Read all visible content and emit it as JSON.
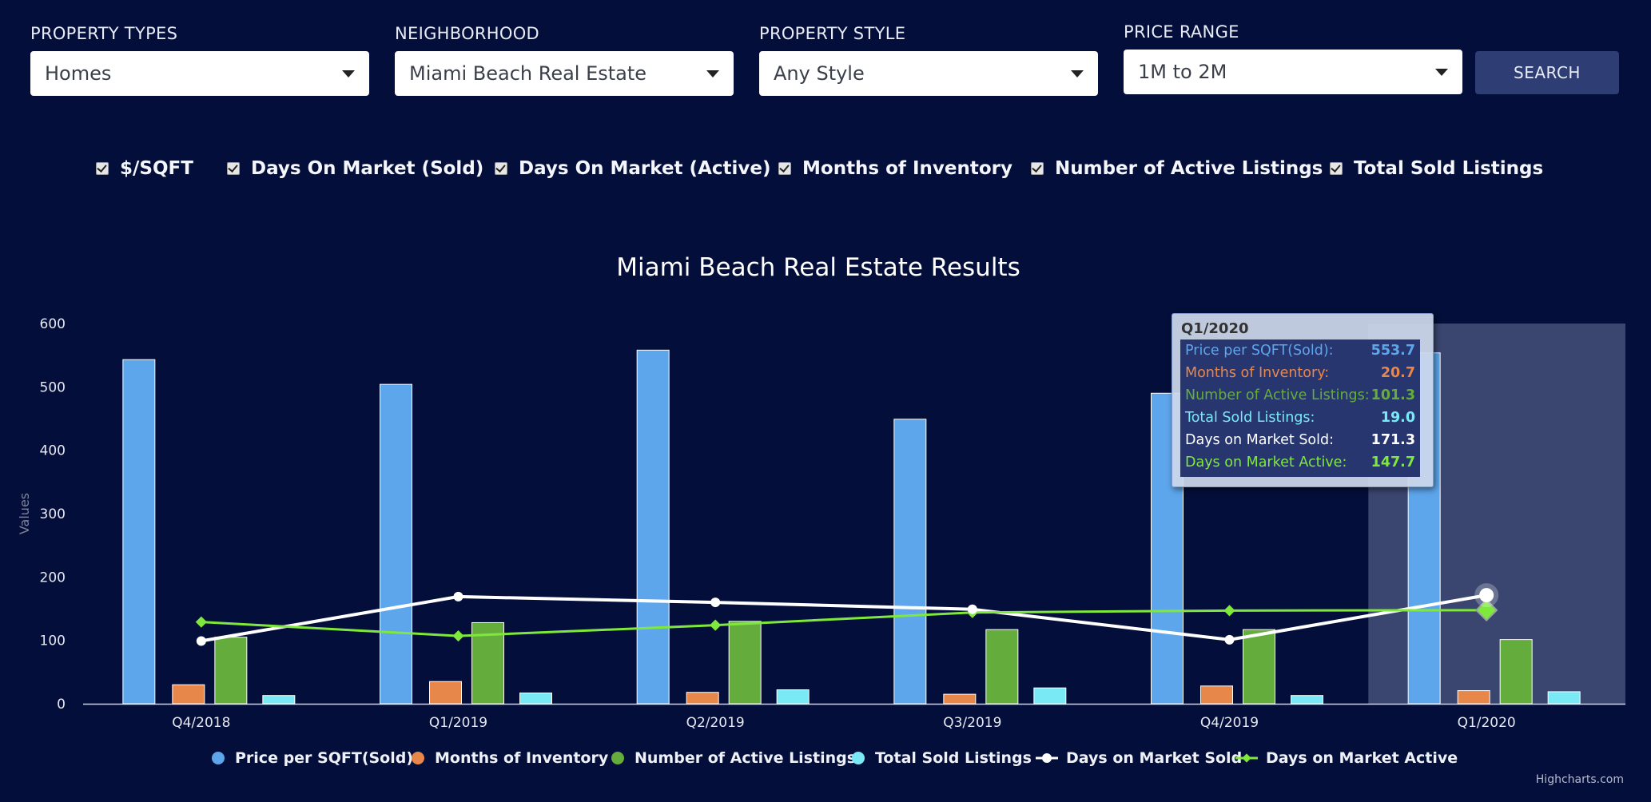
{
  "filters": [
    {
      "label": "PROPERTY TYPES",
      "value": "Homes"
    },
    {
      "label": "NEIGHBORHOOD",
      "value": "Miami Beach Real Estate"
    },
    {
      "label": "PROPERTY STYLE",
      "value": "Any Style"
    },
    {
      "label": "PRICE RANGE",
      "value": "1M to 2M"
    }
  ],
  "search_label": "SEARCH",
  "checkboxes": [
    "$/SQFT",
    "Days On Market (Sold)",
    "Days On Market (Active)",
    "Months of Inventory",
    "Number of Active Listings",
    "Total Sold Listings"
  ],
  "colors": {
    "background": "#040e3a",
    "price": "#5ea6ec",
    "months": "#e8874a",
    "active": "#64ad3c",
    "sold": "#7ae9f6",
    "dom_sold": "#ffffff",
    "dom_active": "#7fe83d",
    "highlight": "#3b4670"
  },
  "chart_data": {
    "type": "bar",
    "title": "Miami Beach Real Estate Results",
    "ylabel": "Values",
    "xlabel": "",
    "ylim": [
      0,
      600
    ],
    "yticks": [
      0,
      100,
      200,
      300,
      400,
      500,
      600
    ],
    "categories": [
      "Q4/2018",
      "Q1/2019",
      "Q2/2019",
      "Q3/2019",
      "Q4/2019",
      "Q1/2020"
    ],
    "series": [
      {
        "name": "Price per SQFT(Sold)",
        "type": "column",
        "values": [
          543,
          504,
          558,
          449,
          490,
          553.7
        ]
      },
      {
        "name": "Months of Inventory",
        "type": "column",
        "values": [
          30,
          35,
          18,
          15,
          28,
          20.7
        ]
      },
      {
        "name": "Number of Active Listings",
        "type": "column",
        "values": [
          105,
          128,
          130,
          117,
          117,
          101.3
        ]
      },
      {
        "name": "Total Sold Listings",
        "type": "column",
        "values": [
          13,
          17,
          22,
          25,
          13,
          19.0
        ]
      },
      {
        "name": "Days on Market Sold",
        "type": "line",
        "values": [
          99,
          169,
          160,
          149,
          101,
          171.3
        ]
      },
      {
        "name": "Days on Market Active",
        "type": "line",
        "values": [
          129,
          107,
          124,
          144,
          147,
          147.7
        ]
      }
    ],
    "highlighted_category": "Q1/2020",
    "legend_position": "bottom-center",
    "grid": false
  },
  "tooltip": {
    "title": "Q1/2020",
    "rows": [
      {
        "label": "Price per SQFT(Sold):",
        "value": "553.7"
      },
      {
        "label": "Months of Inventory:",
        "value": "20.7"
      },
      {
        "label": "Number of Active Listings:",
        "value": "101.3"
      },
      {
        "label": "Total Sold Listings:",
        "value": "19.0"
      },
      {
        "label": "Days on Market Sold:",
        "value": "171.3"
      },
      {
        "label": "Days on Market Active:",
        "value": "147.7"
      }
    ]
  },
  "credit": "Highcharts.com"
}
